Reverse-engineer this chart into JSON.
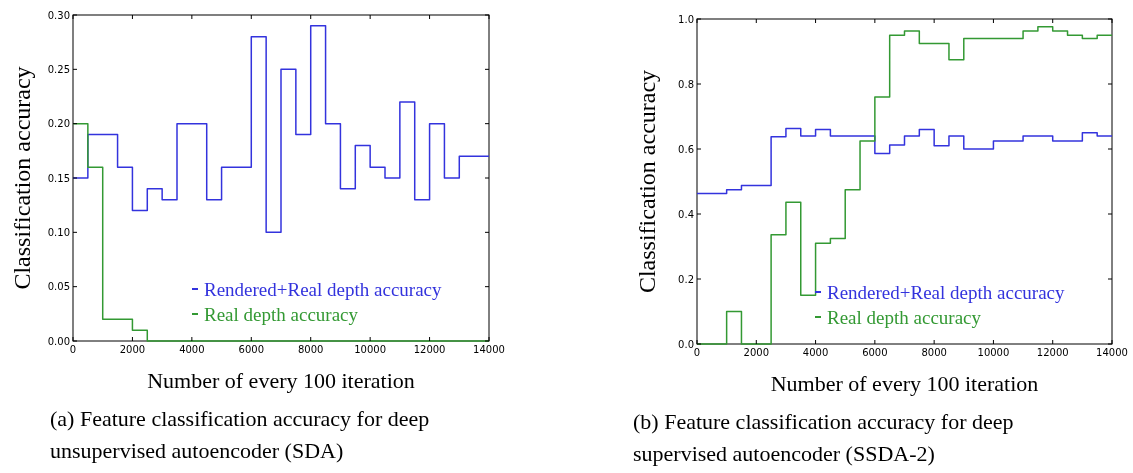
{
  "chart_data": [
    {
      "type": "step",
      "xlabel": "Number of every 100 iteration",
      "ylabel": "Classification accuracy",
      "annotations": [
        "(a) Feature classification accuracy for deep unsupervised autoencoder (SDA)"
      ],
      "x": [
        0,
        500,
        1000,
        1500,
        2000,
        2500,
        3000,
        3500,
        4000,
        4500,
        5000,
        5500,
        6000,
        6500,
        7000,
        7500,
        8000,
        8500,
        9000,
        9500,
        10000,
        10500,
        11000,
        11500,
        12000,
        12500,
        13000,
        13500,
        14000
      ],
      "series": [
        {
          "name": "Rendered+Real depth accuracy",
          "color": "#3333dd",
          "values": [
            0.15,
            0.19,
            0.19,
            0.16,
            0.12,
            0.14,
            0.13,
            0.2,
            0.2,
            0.13,
            0.16,
            0.16,
            0.28,
            0.1,
            0.25,
            0.19,
            0.29,
            0.2,
            0.14,
            0.18,
            0.16,
            0.15,
            0.22,
            0.13,
            0.2,
            0.15,
            0.17,
            0.17,
            0.17
          ]
        },
        {
          "name": "Real depth accuracy",
          "color": "#339933",
          "values": [
            0.2,
            0.16,
            0.02,
            0.02,
            0.01,
            0,
            0,
            0,
            0,
            0,
            0,
            0,
            0,
            0,
            0,
            0,
            0,
            0,
            0,
            0,
            0,
            0,
            0,
            0,
            0,
            0,
            0,
            0,
            0
          ]
        }
      ],
      "xlim": [
        0,
        14000
      ],
      "xticks": [
        0,
        2000,
        4000,
        6000,
        8000,
        10000,
        12000,
        14000
      ],
      "ylim": [
        0,
        0.3
      ],
      "yticks": [
        {
          "value": 0,
          "label": "0.00"
        },
        {
          "value": 0.05,
          "label": "0.05"
        },
        {
          "value": 0.1,
          "label": "0.10"
        },
        {
          "value": 0.15,
          "label": "0.15"
        },
        {
          "value": 0.2,
          "label": "0.20"
        },
        {
          "value": 0.25,
          "label": "0.25"
        },
        {
          "value": 0.3,
          "label": "0.30"
        }
      ],
      "legend": "bottom right",
      "grid": false
    },
    {
      "type": "step",
      "xlabel": "Number of every 100 iteration",
      "ylabel": "Classification accuracy",
      "annotations": [
        "(b) Feature classification accuracy for deep supervised autoencoder (SSDA-2)"
      ],
      "x": [
        0,
        500,
        1000,
        1500,
        2000,
        2500,
        3000,
        3500,
        4000,
        4500,
        5000,
        5500,
        6000,
        6500,
        7000,
        7500,
        8000,
        8500,
        9000,
        9500,
        10000,
        10500,
        11000,
        11500,
        12000,
        12500,
        13000,
        13500,
        14000
      ],
      "series": [
        {
          "name": "Rendered+Real depth accuracy",
          "color": "#3333dd",
          "values": [
            0.463,
            0.463,
            0.475,
            0.488,
            0.488,
            0.638,
            0.663,
            0.64,
            0.66,
            0.64,
            0.64,
            0.64,
            0.586,
            0.612,
            0.64,
            0.66,
            0.61,
            0.64,
            0.6,
            0.6,
            0.625,
            0.625,
            0.64,
            0.64,
            0.625,
            0.625,
            0.65,
            0.64,
            0.64
          ]
        },
        {
          "name": "Real depth accuracy",
          "color": "#339933",
          "values": [
            0,
            0,
            0.1,
            0,
            0,
            0.336,
            0.436,
            0.15,
            0.31,
            0.325,
            0.475,
            0.625,
            0.76,
            0.95,
            0.963,
            0.925,
            0.925,
            0.875,
            0.94,
            0.94,
            0.94,
            0.94,
            0.963,
            0.976,
            0.963,
            0.95,
            0.94,
            0.95,
            0.95
          ]
        }
      ],
      "xlim": [
        0,
        14000
      ],
      "xticks": [
        0,
        2000,
        4000,
        6000,
        8000,
        10000,
        12000,
        14000
      ],
      "ylim": [
        0,
        1
      ],
      "yticks": [
        {
          "value": 0,
          "label": "0.0"
        },
        {
          "value": 0.2,
          "label": "0.2"
        },
        {
          "value": 0.4,
          "label": "0.4"
        },
        {
          "value": 0.6,
          "label": "0.6"
        },
        {
          "value": 0.8,
          "label": "0.8"
        },
        {
          "value": 1,
          "label": "1.0"
        }
      ],
      "legend": "bottom right",
      "grid": false
    }
  ]
}
